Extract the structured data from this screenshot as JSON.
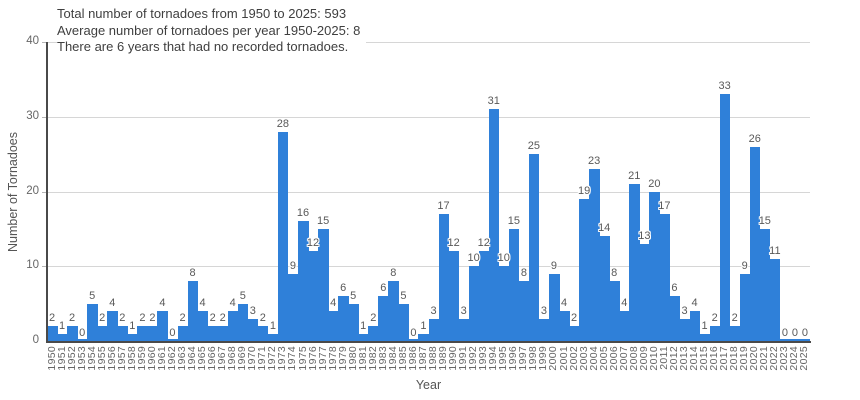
{
  "chart_data": {
    "type": "bar",
    "annotations": [
      "Total number of tornadoes from 1950 to 2025: 593",
      "Average number of tornadoes per year 1950-2025: 8",
      "There are 6 years that had no recorded tornadoes."
    ],
    "categories": [
      "1950",
      "1951",
      "1952",
      "1953",
      "1954",
      "1955",
      "1956",
      "1957",
      "1958",
      "1959",
      "1960",
      "1961",
      "1962",
      "1963",
      "1964",
      "1965",
      "1966",
      "1967",
      "1968",
      "1969",
      "1970",
      "1971",
      "1972",
      "1973",
      "1974",
      "1975",
      "1976",
      "1977",
      "1978",
      "1979",
      "1980",
      "1981",
      "1982",
      "1983",
      "1984",
      "1985",
      "1986",
      "1987",
      "1988",
      "1989",
      "1990",
      "1991",
      "1992",
      "1993",
      "1994",
      "1995",
      "1996",
      "1997",
      "1998",
      "1999",
      "2000",
      "2001",
      "2002",
      "2003",
      "2004",
      "2005",
      "2006",
      "2007",
      "2008",
      "2009",
      "2010",
      "2011",
      "2012",
      "2013",
      "2014",
      "2015",
      "2016",
      "2017",
      "2018",
      "2019",
      "2020",
      "2021",
      "2022",
      "2023",
      "2024",
      "2025"
    ],
    "values": [
      2,
      1,
      2,
      0,
      5,
      2,
      4,
      2,
      1,
      2,
      2,
      4,
      0,
      2,
      8,
      4,
      2,
      2,
      4,
      5,
      3,
      2,
      1,
      28,
      9,
      16,
      12,
      15,
      4,
      6,
      5,
      1,
      2,
      6,
      8,
      5,
      0,
      1,
      3,
      17,
      12,
      3,
      10,
      12,
      31,
      10,
      15,
      8,
      25,
      3,
      9,
      4,
      2,
      19,
      23,
      14,
      8,
      4,
      21,
      13,
      20,
      17,
      6,
      3,
      4,
      1,
      2,
      33,
      2,
      9,
      26,
      15,
      11,
      0,
      0,
      0
    ],
    "xlabel": "Year",
    "ylabel": "Number of Tornadoes",
    "ylim": [
      0,
      40
    ],
    "yticks": [
      0,
      10,
      20,
      30,
      40
    ],
    "grid": "horizontal",
    "legend": "none",
    "colors": {
      "bar": "#2f80d9",
      "gridline": "#d6d6d6",
      "axis_line": "#4a4a4a",
      "tick_text": "#666666",
      "bar_label_text": "#595959",
      "annotation_text": "#3f3f3f"
    }
  }
}
